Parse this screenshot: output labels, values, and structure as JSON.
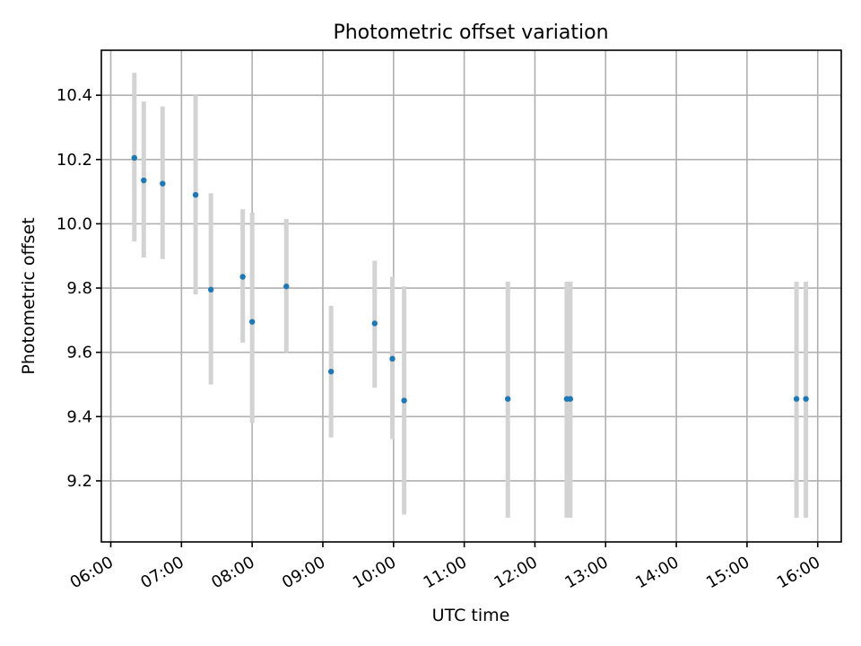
{
  "chart_data": {
    "type": "scatter",
    "title": "Photometric offset variation",
    "xlabel": "UTC time",
    "ylabel": "Photometric offset",
    "x_unit": "UTC time (hours)",
    "xlim": [
      "05:52",
      "16:20"
    ],
    "ylim": [
      9.01,
      10.54
    ],
    "x_ticks": [
      "06:00",
      "07:00",
      "08:00",
      "09:00",
      "10:00",
      "11:00",
      "12:00",
      "13:00",
      "14:00",
      "15:00",
      "16:00"
    ],
    "y_ticks": [
      9.2,
      9.4,
      9.6,
      9.8,
      10.0,
      10.2,
      10.4
    ],
    "grid": true,
    "point_color": "#1f77b4",
    "errorbar_color": "#d3d3d3",
    "points": [
      {
        "x": "06:20",
        "y": 10.205,
        "low": 9.945,
        "high": 10.47
      },
      {
        "x": "06:28",
        "y": 10.135,
        "low": 9.895,
        "high": 10.38
      },
      {
        "x": "06:44",
        "y": 10.125,
        "low": 9.89,
        "high": 10.365
      },
      {
        "x": "07:12",
        "y": 10.09,
        "low": 9.78,
        "high": 10.4
      },
      {
        "x": "07:25",
        "y": 9.795,
        "low": 9.5,
        "high": 10.095
      },
      {
        "x": "07:52",
        "y": 9.835,
        "low": 9.63,
        "high": 10.045
      },
      {
        "x": "08:00",
        "y": 9.695,
        "low": 9.38,
        "high": 10.035
      },
      {
        "x": "08:29",
        "y": 9.805,
        "low": 9.6,
        "high": 10.015
      },
      {
        "x": "09:07",
        "y": 9.54,
        "low": 9.335,
        "high": 9.745
      },
      {
        "x": "09:44",
        "y": 9.69,
        "low": 9.49,
        "high": 9.885
      },
      {
        "x": "09:59",
        "y": 9.58,
        "low": 9.33,
        "high": 9.835
      },
      {
        "x": "10:09",
        "y": 9.45,
        "low": 9.095,
        "high": 9.805
      },
      {
        "x": "11:37",
        "y": 9.455,
        "low": 9.085,
        "high": 9.82
      },
      {
        "x": "12:27",
        "y": 9.455,
        "low": 9.085,
        "high": 9.82
      },
      {
        "x": "12:30",
        "y": 9.455,
        "low": 9.085,
        "high": 9.82
      },
      {
        "x": "15:42",
        "y": 9.455,
        "low": 9.085,
        "high": 9.82
      },
      {
        "x": "15:50",
        "y": 9.455,
        "low": 9.085,
        "high": 9.82
      }
    ]
  }
}
